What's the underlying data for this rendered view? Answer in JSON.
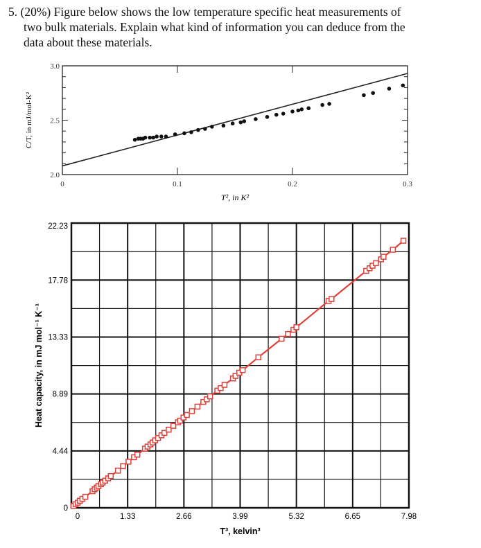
{
  "question": {
    "line1": "5. (20%) Figure below shows the low temperature specific heat measurements of",
    "line2": "two bulk materials. Explain what kind of information you can deduce from the",
    "line3": "data about these materials."
  },
  "chart_data": [
    {
      "type": "scatter",
      "title": "",
      "xlabel": "T², in K²",
      "ylabel": "C/T, in mJ/mol-K²",
      "xlim": [
        0,
        0.3
      ],
      "ylim": [
        2.0,
        3.0
      ],
      "x_ticks": [
        "0",
        "0.1",
        "0.2",
        "0.3"
      ],
      "y_ticks": [
        "2.0",
        "2.5",
        "3.0"
      ],
      "fit_line": {
        "x": [
          0,
          0.3
        ],
        "y": [
          2.08,
          2.93
        ]
      },
      "points": {
        "x": [
          0.063,
          0.066,
          0.068,
          0.07,
          0.072,
          0.076,
          0.079,
          0.082,
          0.086,
          0.09,
          0.098,
          0.106,
          0.112,
          0.118,
          0.124,
          0.13,
          0.14,
          0.148,
          0.155,
          0.158,
          0.168,
          0.178,
          0.186,
          0.192,
          0.2,
          0.205,
          0.208,
          0.214,
          0.226,
          0.232,
          0.262,
          0.27,
          0.284,
          0.296
        ],
        "y": [
          2.32,
          2.33,
          2.33,
          2.33,
          2.34,
          2.34,
          2.34,
          2.35,
          2.35,
          2.35,
          2.37,
          2.38,
          2.39,
          2.41,
          2.42,
          2.44,
          2.45,
          2.47,
          2.48,
          2.49,
          2.51,
          2.53,
          2.55,
          2.56,
          2.58,
          2.59,
          2.6,
          2.61,
          2.64,
          2.65,
          2.73,
          2.75,
          2.79,
          2.82
        ]
      }
    },
    {
      "type": "line",
      "title": "",
      "xlabel": "T³, kelvin³",
      "ylabel": "Heat capacity, in mJ mol⁻¹ K⁻¹",
      "xlim": [
        0,
        7.98
      ],
      "ylim": [
        0,
        22.23
      ],
      "x_ticks": [
        "0",
        "1.33",
        "2.66",
        "3.99",
        "5.32",
        "6.65",
        "7.98"
      ],
      "y_ticks": [
        "0",
        "4.44",
        "8.89",
        "13.33",
        "17.78",
        "22.23"
      ],
      "line_color": "#e0403a",
      "series": [
        {
          "x": [
            0.05,
            0.1,
            0.15,
            0.2,
            0.26,
            0.33,
            0.5,
            0.55,
            0.6,
            0.64,
            0.7,
            0.74,
            0.8,
            0.87,
            0.93,
            1.1,
            1.22,
            1.35,
            1.48,
            1.56,
            1.74,
            1.8,
            1.87,
            1.92,
            1.98,
            2.05,
            2.13,
            2.2,
            2.3,
            2.41,
            2.52,
            2.57,
            2.65,
            2.73,
            2.85,
            2.98,
            3.12,
            3.2,
            3.28,
            3.45,
            3.53,
            3.62,
            3.82,
            3.88,
            3.97,
            4.05,
            4.42,
            4.97,
            5.12,
            5.25,
            5.32,
            6.08,
            6.15,
            6.97,
            7.05,
            7.12,
            7.2,
            7.32,
            7.38,
            7.6,
            7.85
          ],
          "y": [
            0.15,
            0.28,
            0.4,
            0.55,
            0.7,
            0.86,
            1.3,
            1.45,
            1.58,
            1.7,
            1.85,
            1.97,
            2.12,
            2.3,
            2.48,
            2.9,
            3.25,
            3.6,
            3.95,
            4.15,
            4.62,
            4.78,
            4.95,
            5.1,
            5.27,
            5.45,
            5.66,
            5.85,
            6.1,
            6.4,
            6.68,
            6.8,
            7.05,
            7.25,
            7.55,
            7.9,
            8.27,
            8.47,
            8.7,
            9.15,
            9.35,
            9.6,
            10.1,
            10.3,
            10.55,
            10.75,
            11.75,
            13.2,
            13.57,
            13.9,
            14.1,
            16.15,
            16.3,
            18.5,
            18.7,
            18.9,
            19.1,
            19.4,
            19.6,
            20.15,
            20.85
          ]
        }
      ]
    }
  ]
}
